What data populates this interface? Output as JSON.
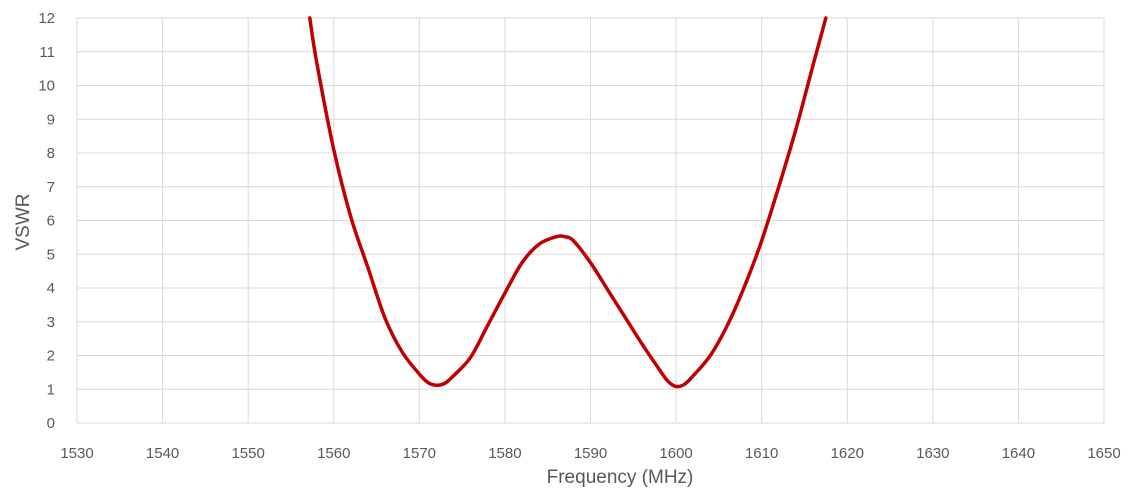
{
  "chart_data": {
    "type": "line",
    "title": "",
    "xlabel": "Frequency (MHz)",
    "ylabel": "VSWR",
    "xlim": [
      1530,
      1650
    ],
    "ylim": [
      0,
      12
    ],
    "x_ticks": [
      1530,
      1540,
      1550,
      1560,
      1570,
      1580,
      1590,
      1600,
      1610,
      1620,
      1630,
      1640,
      1650
    ],
    "y_ticks": [
      0,
      1,
      2,
      3,
      4,
      5,
      6,
      7,
      8,
      9,
      10,
      11,
      12
    ],
    "grid": true,
    "legend": "none",
    "series": [
      {
        "color": "#c00000",
        "x": [
          1557.2,
          1558,
          1560,
          1562,
          1564,
          1566,
          1568,
          1570,
          1571,
          1572,
          1573,
          1574,
          1576,
          1578,
          1580,
          1582,
          1584,
          1586,
          1587,
          1588,
          1590,
          1592,
          1594,
          1596,
          1598,
          1599,
          1600,
          1601,
          1602,
          1604,
          1606,
          1608,
          1610,
          1612,
          1614,
          1616,
          1617.5
        ],
        "values": [
          12.0,
          10.7,
          8.1,
          6.1,
          4.6,
          3.1,
          2.1,
          1.45,
          1.2,
          1.12,
          1.18,
          1.4,
          1.95,
          2.9,
          3.85,
          4.75,
          5.3,
          5.52,
          5.52,
          5.4,
          4.75,
          3.95,
          3.15,
          2.35,
          1.6,
          1.25,
          1.08,
          1.15,
          1.4,
          2.0,
          2.9,
          4.05,
          5.4,
          7.0,
          8.7,
          10.6,
          12.0
        ]
      }
    ]
  }
}
